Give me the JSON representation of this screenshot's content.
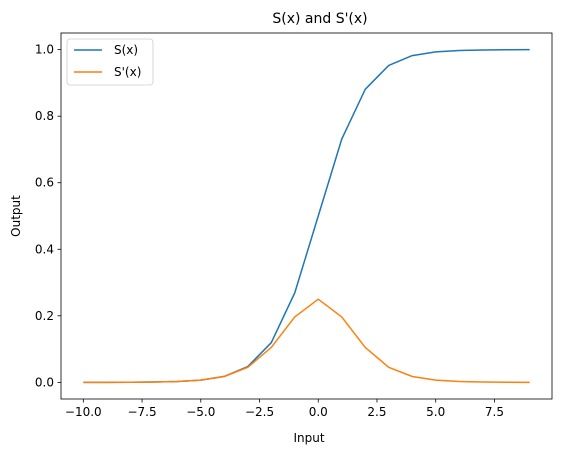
{
  "chart_data": {
    "type": "line",
    "title": "S(x) and S'(x)",
    "xlabel": "Input",
    "ylabel": "Output",
    "xlim": [
      -10.95,
      9.95
    ],
    "ylim": [
      -0.05,
      1.05
    ],
    "grid": false,
    "legend_position": "top-left",
    "x": [
      -10,
      -9,
      -8,
      -7,
      -6,
      -5,
      -4,
      -3,
      -2,
      -1,
      0,
      1,
      2,
      3,
      4,
      5,
      6,
      7,
      8,
      9
    ],
    "x_ticks": [
      -10.0,
      -7.5,
      -5.0,
      -2.5,
      0.0,
      2.5,
      5.0,
      7.5
    ],
    "x_tick_labels": [
      "−10.0",
      "−7.5",
      "−5.0",
      "−2.5",
      "0.0",
      "2.5",
      "5.0",
      "7.5"
    ],
    "y_ticks": [
      0.0,
      0.2,
      0.4,
      0.6,
      0.8,
      1.0
    ],
    "y_tick_labels": [
      "0.0",
      "0.2",
      "0.4",
      "0.6",
      "0.8",
      "1.0"
    ],
    "series": [
      {
        "name": "S(x)",
        "color": "#1f77b4",
        "values": [
          4.54e-05,
          0.0001234,
          0.0003354,
          0.000911,
          0.002473,
          0.006693,
          0.017986,
          0.047426,
          0.119203,
          0.268941,
          0.5,
          0.731059,
          0.880797,
          0.952574,
          0.982014,
          0.993307,
          0.997527,
          0.999089,
          0.999665,
          0.999877
        ]
      },
      {
        "name": "S'(x)",
        "color": "#ff7f0e",
        "values": [
          4.54e-05,
          0.0001234,
          0.0003353,
          0.00091,
          0.002467,
          0.006648,
          0.017663,
          0.045177,
          0.104994,
          0.196612,
          0.25,
          0.196612,
          0.104994,
          0.045177,
          0.017663,
          0.006648,
          0.002467,
          0.00091,
          0.000335,
          0.000123
        ]
      }
    ]
  }
}
